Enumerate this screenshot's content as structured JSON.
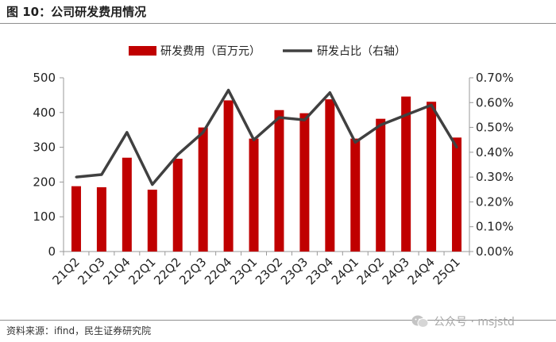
{
  "header": {
    "title": "图 10：公司研发费用情况"
  },
  "footer": {
    "source": "资料来源：ifind，民生证券研究院"
  },
  "watermark": {
    "text": "公众号 · msjstd"
  },
  "colors": {
    "bar": "#C00000",
    "line": "#404040",
    "axis": "#999999"
  },
  "chart_data": {
    "type": "bar",
    "title": "",
    "categories": [
      "21Q2",
      "21Q3",
      "21Q4",
      "22Q1",
      "22Q2",
      "22Q3",
      "22Q4",
      "23Q1",
      "23Q2",
      "23Q3",
      "23Q4",
      "24Q1",
      "24Q2",
      "24Q3",
      "24Q4",
      "25Q1"
    ],
    "series": [
      {
        "name": "研发费用（百万元）",
        "type": "bar",
        "axis": "left",
        "values": [
          188,
          185,
          270,
          178,
          267,
          357,
          435,
          325,
          407,
          398,
          438,
          325,
          382,
          446,
          431,
          328
        ]
      },
      {
        "name": "研发占比（右轴）",
        "type": "line",
        "axis": "right",
        "values": [
          0.3,
          0.31,
          0.48,
          0.27,
          0.39,
          0.48,
          0.65,
          0.45,
          0.54,
          0.53,
          0.64,
          0.44,
          0.51,
          0.55,
          0.59,
          0.42
        ]
      }
    ],
    "left_axis": {
      "ylim": [
        0,
        500
      ],
      "ticks": [
        "0",
        "100",
        "200",
        "300",
        "400",
        "500"
      ]
    },
    "right_axis": {
      "ylim": [
        0,
        0.7
      ],
      "ticks": [
        "0.00%",
        "0.10%",
        "0.20%",
        "0.30%",
        "0.40%",
        "0.50%",
        "0.60%",
        "0.70%"
      ]
    },
    "legend": {
      "position": "top"
    },
    "xlabel": "",
    "ylabel": "",
    "grid": false
  }
}
